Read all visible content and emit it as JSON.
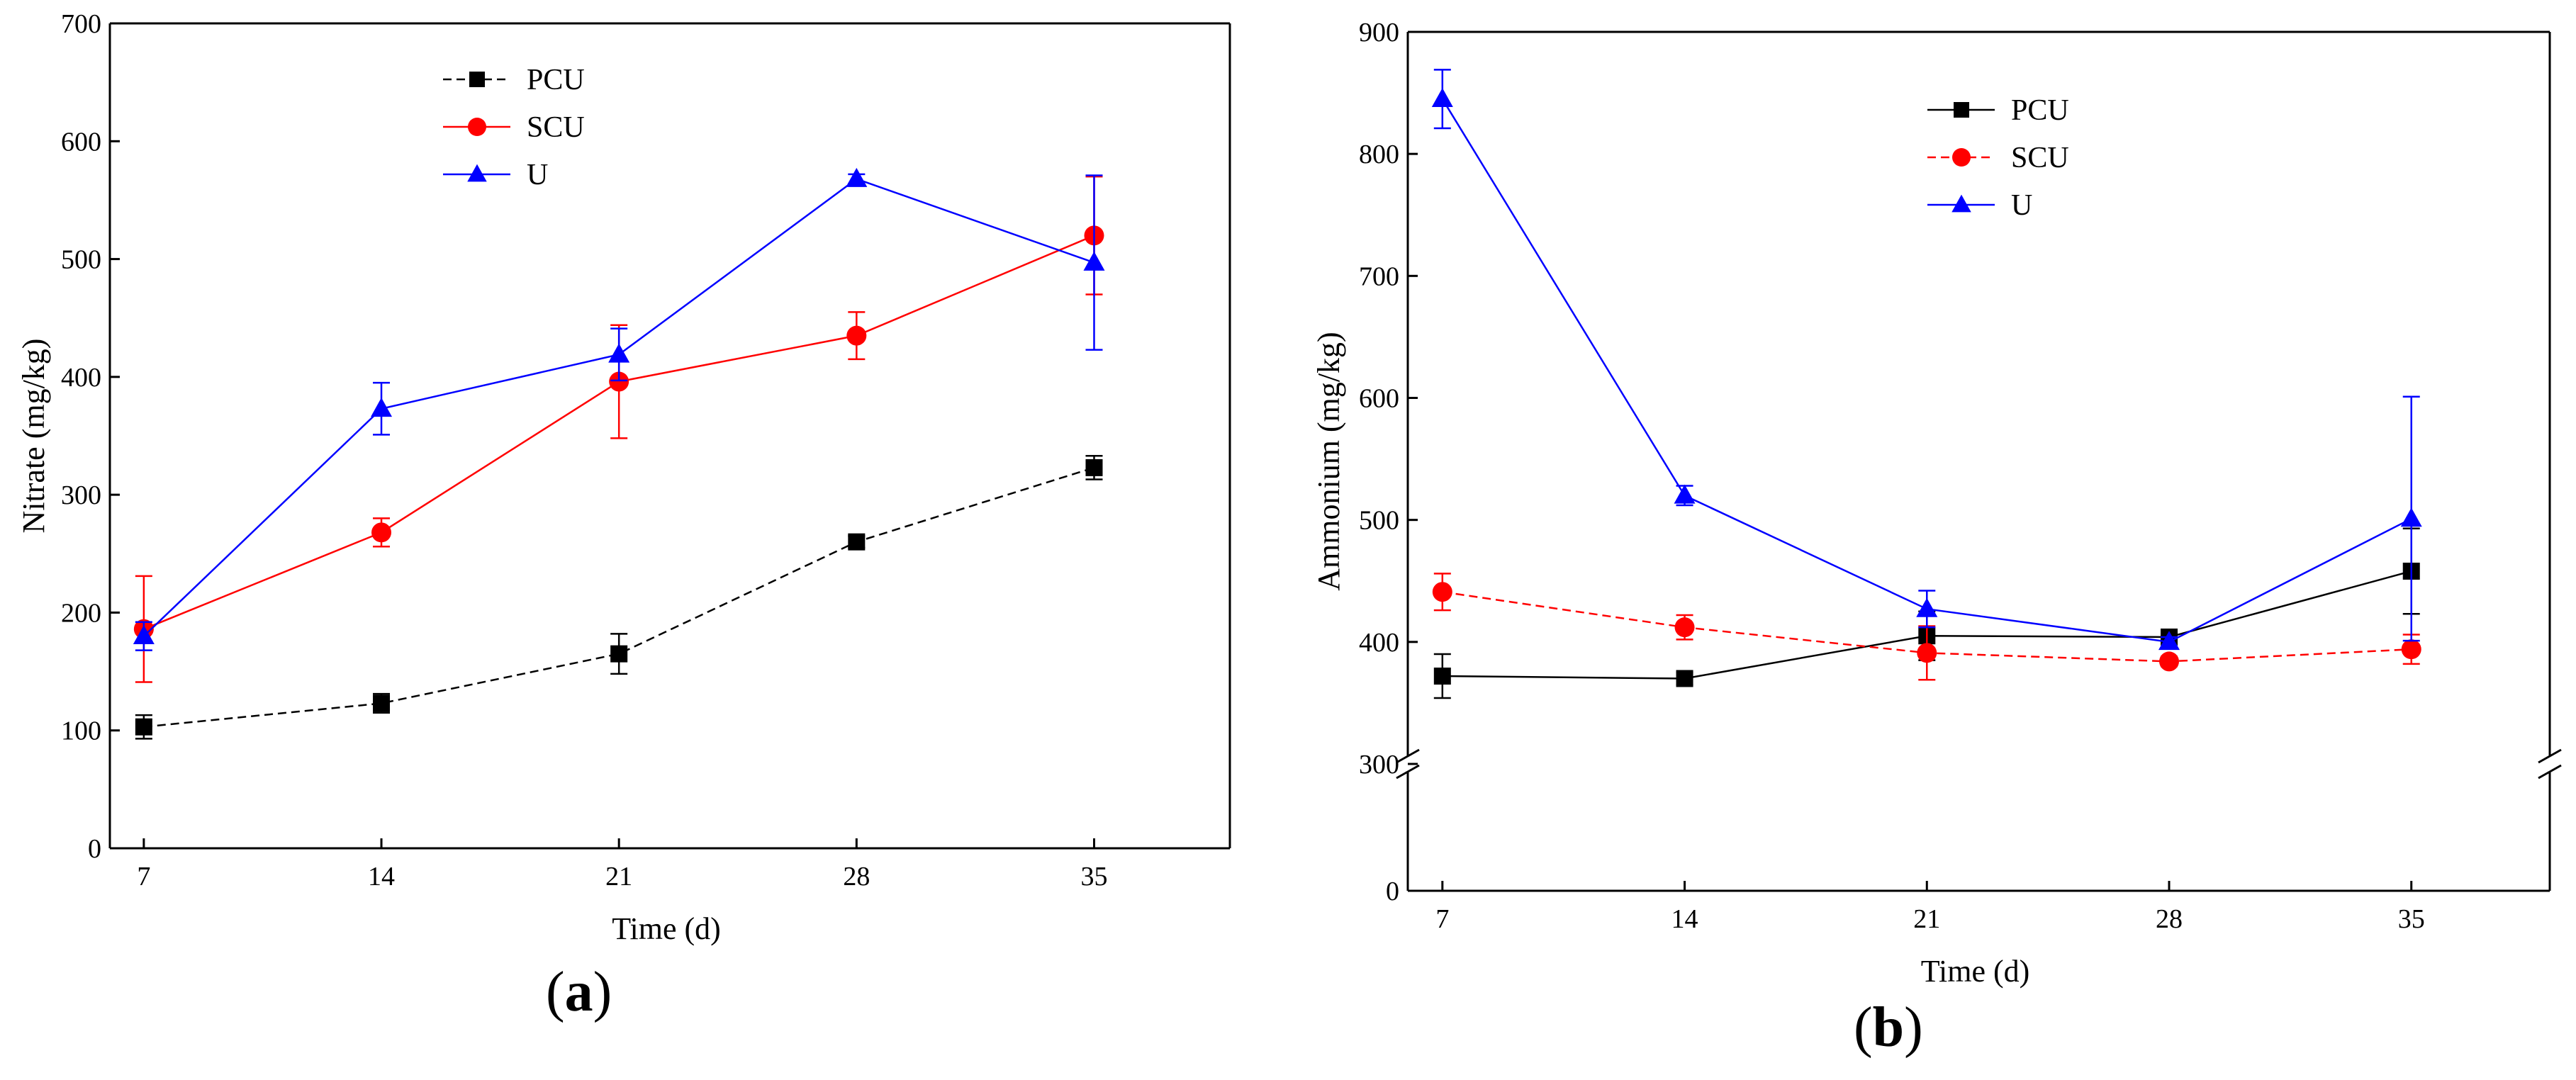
{
  "chart_data": [
    {
      "id": "a",
      "type": "line",
      "panel_label": "a",
      "xlabel": "Time (d)",
      "ylabel": "Nitrate (mg/kg)",
      "x": [
        7,
        14,
        21,
        28,
        35
      ],
      "x_ticks": [
        7,
        14,
        21,
        28,
        35
      ],
      "xlim": [
        6,
        39
      ],
      "ylim": [
        0,
        700
      ],
      "y_ticks": [
        0,
        100,
        200,
        300,
        400,
        500,
        600,
        700
      ],
      "legend_position": "top-center",
      "series": [
        {
          "name": "PCU",
          "color": "#000000",
          "marker": "square",
          "line": "dashed",
          "values": [
            103,
            123,
            165,
            260,
            323
          ],
          "errors": [
            10,
            8,
            17,
            5,
            10
          ]
        },
        {
          "name": "SCU",
          "color": "#ff0000",
          "marker": "circle",
          "line": "solid",
          "values": [
            186,
            268,
            396,
            435,
            520
          ],
          "errors": [
            45,
            12,
            48,
            20,
            50
          ]
        },
        {
          "name": "U",
          "color": "#0000ff",
          "marker": "triangle",
          "line": "solid",
          "values": [
            180,
            373,
            419,
            568,
            497
          ],
          "errors": [
            12,
            22,
            22,
            4,
            74
          ]
        }
      ]
    },
    {
      "id": "b",
      "type": "line",
      "panel_label": "b",
      "xlabel": "Time (d)",
      "ylabel": "Ammonium (mg/kg)",
      "x": [
        7,
        14,
        21,
        28,
        35
      ],
      "x_ticks": [
        7,
        14,
        21,
        28,
        35
      ],
      "xlim": [
        6,
        39
      ],
      "ylim": [
        0,
        900
      ],
      "axis_break": [
        0,
        300
      ],
      "y_ticks": [
        0,
        300,
        400,
        500,
        600,
        700,
        800,
        900
      ],
      "legend_position": "top-center",
      "series": [
        {
          "name": "PCU",
          "color": "#000000",
          "marker": "square",
          "line": "solid",
          "values": [
            372,
            370,
            405,
            404,
            458
          ],
          "errors": [
            18,
            5,
            20,
            4,
            35
          ]
        },
        {
          "name": "SCU",
          "color": "#ff0000",
          "marker": "circle",
          "line": "dashed",
          "values": [
            441,
            412,
            391,
            384,
            394
          ],
          "errors": [
            15,
            10,
            22,
            4,
            12
          ]
        },
        {
          "name": "U",
          "color": "#0000ff",
          "marker": "triangle",
          "line": "solid",
          "values": [
            845,
            520,
            427,
            400,
            501
          ],
          "errors": [
            24,
            8,
            15,
            4,
            100
          ]
        }
      ]
    }
  ]
}
